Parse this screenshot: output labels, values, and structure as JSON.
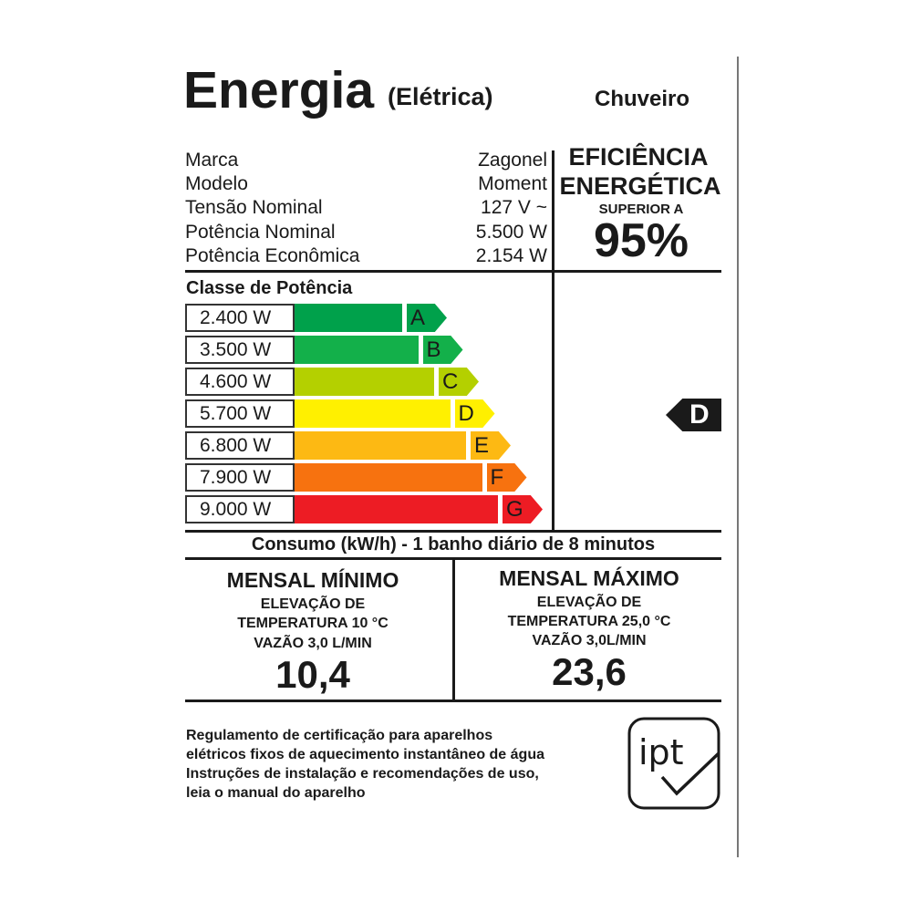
{
  "header": {
    "title": "Energia",
    "subtitle": "(Elétrica)",
    "product": "Chuveiro"
  },
  "specs": [
    {
      "label": "Marca",
      "value": "Zagonel"
    },
    {
      "label": "Modelo",
      "value": "Moment"
    },
    {
      "label": "Tensão Nominal",
      "value": "127 V ~"
    },
    {
      "label": "Potência Nominal",
      "value": "5.500 W"
    },
    {
      "label": "Potência Econômica",
      "value": "2.154 W"
    }
  ],
  "efficiency": {
    "line1": "EFICIÊNCIA",
    "line2": "ENERGÉTICA",
    "line3": "SUPERIOR A",
    "percent": "95%"
  },
  "classes": {
    "title": "Classe de Potência",
    "rows": [
      {
        "power": "2.400 W",
        "letter": "A",
        "color": "#00a14b"
      },
      {
        "power": "3.500 W",
        "letter": "B",
        "color": "#13b04a"
      },
      {
        "power": "4.600 W",
        "letter": "C",
        "color": "#b4d000"
      },
      {
        "power": "5.700 W",
        "letter": "D",
        "color": "#fff000"
      },
      {
        "power": "6.800 W",
        "letter": "E",
        "color": "#fdb913"
      },
      {
        "power": "7.900 W",
        "letter": "F",
        "color": "#f7720f"
      },
      {
        "power": "9.000 W",
        "letter": "G",
        "color": "#ed1c24"
      }
    ],
    "rating": "D"
  },
  "consumption": {
    "title": "Consumo (kW/h) - 1 banho diário de 8 minutos",
    "min": {
      "title": "MENSAL MÍNIMO",
      "l1": "ELEVAÇÃO DE",
      "l2": "TEMPERATURA 10 °C",
      "l3": "VAZÃO 3,0 L/MIN",
      "value": "10,4"
    },
    "max": {
      "title": "MENSAL MÁXIMO",
      "l1": "ELEVAÇÃO DE",
      "l2": "TEMPERATURA 25,0 °C",
      "l3": "VAZÃO 3,0L/MIN",
      "value": "23,6"
    }
  },
  "footer": {
    "lines": [
      "Regulamento de certificação para aparelhos",
      "elétricos fixos de aquecimento instantâneo de água",
      "Instruções de instalação e recomendações de uso,",
      "leia o manual do aparelho"
    ],
    "logo": "ipt"
  }
}
